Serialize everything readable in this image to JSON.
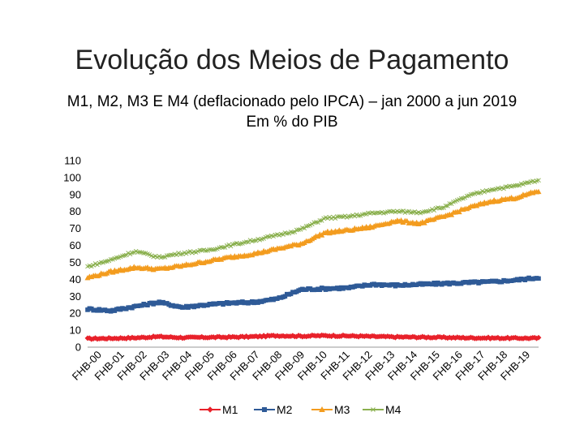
{
  "slide": {
    "title": "Evolução dos Meios de Pagamento",
    "subtitle_line1": "M1, M2, M3 E M4  (deflacionado pelo IPCA) – jan 2000 a jun 2019",
    "subtitle_line2": "Em % do PIB"
  },
  "chart_data": {
    "type": "line",
    "title": "M1, M2, M3 E M4 (deflacionado pelo IPCA) – jan 2000 a jun 2019",
    "subtitle": "Em % do PIB",
    "xlabel": "",
    "ylabel": "",
    "ylim": [
      0,
      110
    ],
    "yticks": [
      0,
      10,
      20,
      30,
      40,
      50,
      60,
      70,
      80,
      90,
      100,
      110
    ],
    "categories": [
      "FHB-00",
      "FHB-01",
      "FHB-02",
      "FHB-03",
      "FHB-04",
      "FHB-05",
      "FHB-06",
      "FHB-07",
      "FHB-08",
      "FHB-09",
      "FHB-10",
      "FHB-11",
      "FHB-12",
      "FHB-13",
      "FHB-14",
      "FHB-15",
      "FHB-16",
      "FHB-17",
      "FHB-18",
      "FHB-19"
    ],
    "legend_position": "bottom",
    "series": [
      {
        "name": "M1",
        "color": "#e8212a",
        "marker": "diamond",
        "values": [
          5,
          5.2,
          5.5,
          6.2,
          5.6,
          5.8,
          5.9,
          6.2,
          6.8,
          6.5,
          6.8,
          6.6,
          6.3,
          6.0,
          5.9,
          5.7,
          5.5,
          5.4,
          5.3,
          5.3
        ]
      },
      {
        "name": "M2",
        "color": "#2e5a97",
        "marker": "square",
        "values": [
          22.5,
          21.5,
          24,
          26.5,
          23.5,
          25,
          26,
          26.5,
          28.5,
          34,
          34.5,
          35,
          37,
          36.5,
          37,
          37.5,
          38,
          38.5,
          39.5,
          41
        ]
      },
      {
        "name": "M3",
        "color": "#f39c1f",
        "marker": "triangle",
        "values": [
          41,
          44.5,
          47,
          46,
          48,
          50.5,
          53,
          55,
          58,
          61,
          67.5,
          69,
          71,
          74.5,
          73,
          77,
          82,
          86,
          88,
          92
        ]
      },
      {
        "name": "M4",
        "color": "#8ab04e",
        "marker": "x",
        "values": [
          47.5,
          51.5,
          56.5,
          53,
          55.5,
          57,
          60,
          63,
          66,
          69.5,
          76,
          77,
          79,
          80,
          79.5,
          82.5,
          89,
          93,
          95,
          98.5
        ]
      }
    ]
  }
}
